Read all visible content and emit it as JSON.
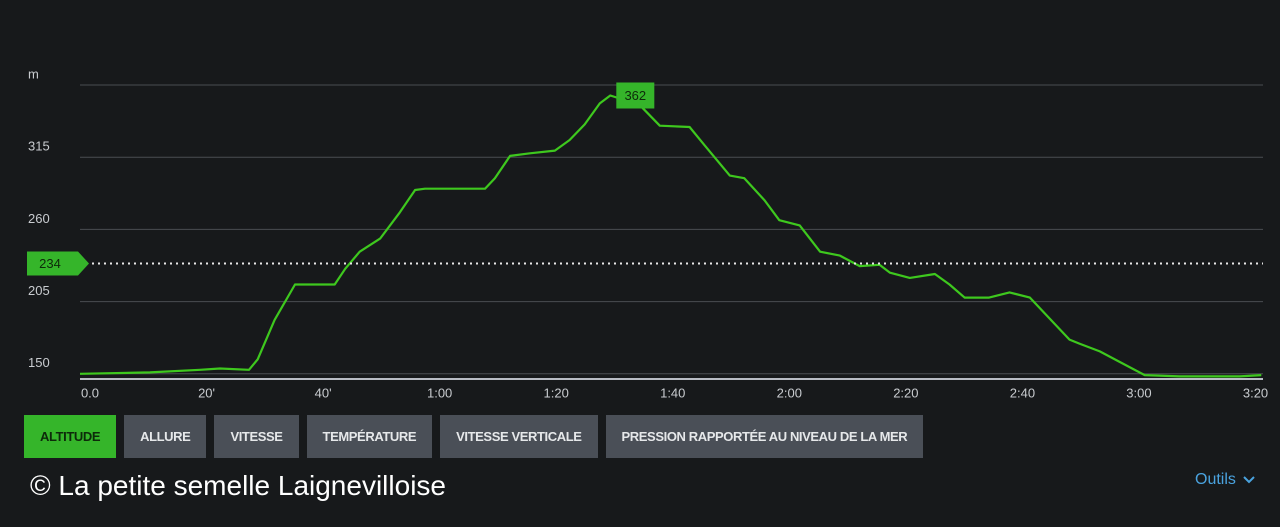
{
  "chart_data": {
    "type": "line",
    "y_unit_tick": "m",
    "x": [
      0,
      12,
      20.6,
      24,
      29,
      30.5,
      33.4,
      36.9,
      37.7,
      43.7,
      45.5,
      48,
      51.5,
      54.9,
      57.5,
      59.2,
      69.5,
      71.2,
      73.8,
      77.2,
      81.5,
      84,
      86.6,
      89.2,
      91,
      96,
      99.5,
      104.6,
      107.2,
      111.5,
      114,
      117.5,
      120,
      123.5,
      127,
      130.4,
      133.8,
      137.2,
      139,
      142.4,
      146.7,
      149.2,
      151.8,
      156,
      159.5,
      163,
      166.4,
      169.8,
      171.5,
      175,
      178.4,
      182.7,
      188.7,
      199,
      202.7
    ],
    "series": [
      {
        "name": "Altitude",
        "color": "#3ec81e",
        "values": [
          150,
          151,
          153,
          154,
          153,
          161,
          191,
          218,
          218,
          218,
          230,
          243,
          253,
          273,
          290,
          291,
          291,
          299,
          316,
          318,
          320,
          328,
          340,
          356,
          362,
          355,
          339,
          338,
          324,
          301,
          299,
          282,
          267,
          263,
          243,
          240,
          232,
          233,
          227,
          223,
          226,
          218,
          208,
          208,
          212,
          208,
          192,
          176,
          173,
          167,
          159,
          149,
          148,
          148,
          149
        ]
      }
    ],
    "peak_label": {
      "x": 91,
      "value": 362
    },
    "reference_line": 234,
    "xlim": [
      0,
      203
    ],
    "ylim": [
      146,
      370
    ],
    "yticks": [
      150,
      205,
      260,
      315,
      {
        "value": 370,
        "label": "m"
      }
    ],
    "xticks": [
      {
        "value": 0,
        "label": "0.0"
      },
      {
        "value": 20,
        "label": "20'"
      },
      {
        "value": 40,
        "label": "40'"
      },
      {
        "value": 60,
        "label": "1:00"
      },
      {
        "value": 80,
        "label": "1:20"
      },
      {
        "value": 100,
        "label": "1:40"
      },
      {
        "value": 120,
        "label": "2:00"
      },
      {
        "value": 140,
        "label": "2:20"
      },
      {
        "value": 160,
        "label": "2:40"
      },
      {
        "value": 180,
        "label": "3:00"
      },
      {
        "value": 200,
        "label": "3:20"
      }
    ],
    "grid": true
  },
  "tabs": [
    "ALTITUDE",
    "ALLURE",
    "VITESSE",
    "TEMPÉRATURE",
    "VITESSE VERTICALE",
    "PRESSION RAPPORTÉE AU NIVEAU DE LA MER"
  ],
  "credit": "© La petite semelle Laignevilloise",
  "tools": "Outils"
}
